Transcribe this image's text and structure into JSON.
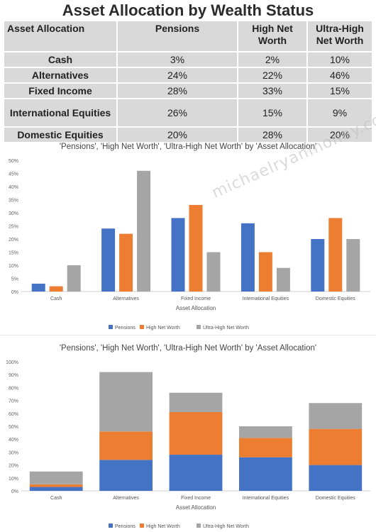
{
  "table": {
    "title": "Asset Allocation by Wealth Status",
    "headers": [
      "Asset Allocation",
      "Pensions",
      "High Net Worth",
      "Ultra-High Net Worth"
    ],
    "rows": [
      [
        "Cash",
        "3%",
        "2%",
        "10%"
      ],
      [
        "Alternatives",
        "24%",
        "22%",
        "46%"
      ],
      [
        "Fixed Income",
        "28%",
        "33%",
        "15%"
      ],
      [
        "International Equities",
        "26%",
        "15%",
        "9%"
      ],
      [
        "Domestic Equities",
        "20%",
        "28%",
        "20%"
      ]
    ]
  },
  "watermark": "michaelryanmoney.com",
  "colors": {
    "Pensions": "#4472c4",
    "High Net Worth": "#ed7d31",
    "Ultra-High Net Worth": "#a5a5a5"
  },
  "chart_data": [
    {
      "type": "bar",
      "title": "'Pensions', 'High Net Worth', 'Ultra-High Net Worth' by 'Asset Allocation'",
      "xlabel": "Asset Allocation",
      "ylabel": "",
      "categories": [
        "Cash",
        "Alternatives",
        "Fixed Income",
        "International Equities",
        "Domestic Equities"
      ],
      "series": [
        {
          "name": "Pensions",
          "values": [
            3,
            24,
            28,
            26,
            20
          ]
        },
        {
          "name": "High Net Worth",
          "values": [
            2,
            22,
            33,
            15,
            28
          ]
        },
        {
          "name": "Ultra-High Net Worth",
          "values": [
            10,
            46,
            15,
            9,
            20
          ]
        }
      ],
      "ylim": [
        0,
        50
      ],
      "yticks": [
        "0%",
        "5%",
        "10%",
        "15%",
        "20%",
        "25%",
        "30%",
        "35%",
        "40%",
        "45%",
        "50%"
      ],
      "legend": "bottom",
      "grid": false
    },
    {
      "type": "bar",
      "stacked": true,
      "title": "'Pensions', 'High Net Worth', 'Ultra-High Net Worth' by 'Asset Allocation'",
      "xlabel": "Asset Allocation",
      "ylabel": "",
      "categories": [
        "Cash",
        "Alternatives",
        "Fixed Income",
        "International Equities",
        "Domestic Equities"
      ],
      "series": [
        {
          "name": "Pensions",
          "values": [
            3,
            24,
            28,
            26,
            20
          ]
        },
        {
          "name": "High Net Worth",
          "values": [
            2,
            22,
            33,
            15,
            28
          ]
        },
        {
          "name": "Ultra-High Net Worth",
          "values": [
            10,
            46,
            15,
            9,
            20
          ]
        }
      ],
      "ylim": [
        0,
        100
      ],
      "yticks": [
        "0%",
        "10%",
        "20%",
        "30%",
        "40%",
        "50%",
        "60%",
        "70%",
        "80%",
        "90%",
        "100%"
      ],
      "legend": "bottom",
      "grid": false
    }
  ]
}
